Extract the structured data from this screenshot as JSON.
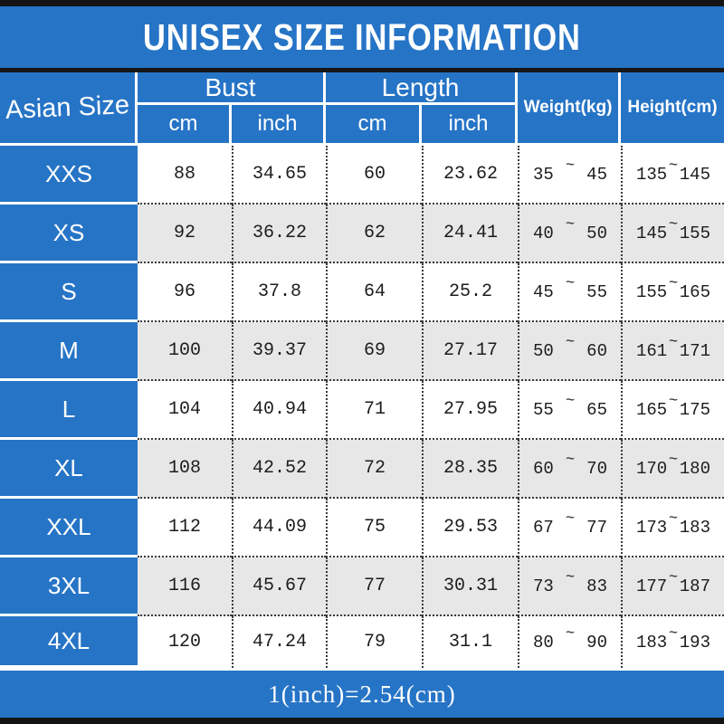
{
  "title": "UNISEX SIZE INFORMATION",
  "colors": {
    "accent_blue": "#2674c6",
    "row_alt_gray": "#e7e7e7",
    "bar_black": "#141414",
    "text_dark": "#1c1c1c",
    "text_light": "#ffffff"
  },
  "table": {
    "corner_label": "Asian Size",
    "groups": [
      {
        "label": "Bust",
        "units": [
          "cm",
          "inch"
        ]
      },
      {
        "label": "Length",
        "units": [
          "cm",
          "inch"
        ]
      }
    ],
    "weight_header": "Weight(kg)",
    "height_header": "Height(cm)",
    "tilde": "~",
    "rows": [
      {
        "size": "XXS",
        "bust_cm": "88",
        "bust_inch": "34.65",
        "length_cm": "60",
        "length_inch": "23.62",
        "weight": [
          "35",
          "45"
        ],
        "height": [
          "135",
          "145"
        ]
      },
      {
        "size": "XS",
        "bust_cm": "92",
        "bust_inch": "36.22",
        "length_cm": "62",
        "length_inch": "24.41",
        "weight": [
          "40",
          "50"
        ],
        "height": [
          "145",
          "155"
        ]
      },
      {
        "size": "S",
        "bust_cm": "96",
        "bust_inch": "37.8",
        "length_cm": "64",
        "length_inch": "25.2",
        "weight": [
          "45",
          "55"
        ],
        "height": [
          "155",
          "165"
        ]
      },
      {
        "size": "M",
        "bust_cm": "100",
        "bust_inch": "39.37",
        "length_cm": "69",
        "length_inch": "27.17",
        "weight": [
          "50",
          "60"
        ],
        "height": [
          "161",
          "171"
        ]
      },
      {
        "size": "L",
        "bust_cm": "104",
        "bust_inch": "40.94",
        "length_cm": "71",
        "length_inch": "27.95",
        "weight": [
          "55",
          "65"
        ],
        "height": [
          "165",
          "175"
        ]
      },
      {
        "size": "XL",
        "bust_cm": "108",
        "bust_inch": "42.52",
        "length_cm": "72",
        "length_inch": "28.35",
        "weight": [
          "60",
          "70"
        ],
        "height": [
          "170",
          "180"
        ]
      },
      {
        "size": "XXL",
        "bust_cm": "112",
        "bust_inch": "44.09",
        "length_cm": "75",
        "length_inch": "29.53",
        "weight": [
          "67",
          "77"
        ],
        "height": [
          "173",
          "183"
        ]
      },
      {
        "size": "3XL",
        "bust_cm": "116",
        "bust_inch": "45.67",
        "length_cm": "77",
        "length_inch": "30.31",
        "weight": [
          "73",
          "83"
        ],
        "height": [
          "177",
          "187"
        ]
      },
      {
        "size": "4XL",
        "bust_cm": "120",
        "bust_inch": "47.24",
        "length_cm": "79",
        "length_inch": "31.1",
        "weight": [
          "80",
          "90"
        ],
        "height": [
          "183",
          "193"
        ]
      }
    ]
  },
  "footer": "1(inch)=2.54(cm)"
}
